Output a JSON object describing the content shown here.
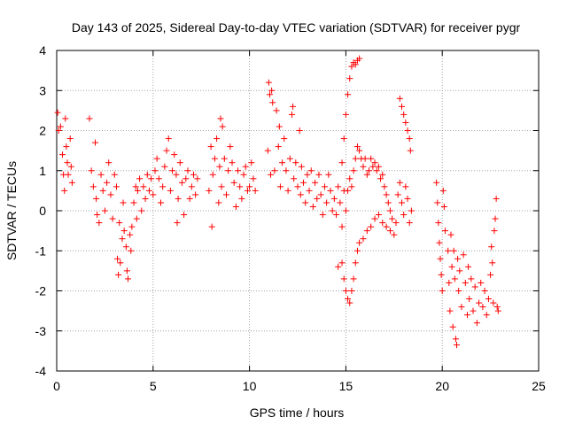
{
  "chart_data": {
    "type": "scatter",
    "title": "Day 143 of 2025, Sidereal Day-to-day VTEC variation (SDTVAR) for receiver pygr",
    "xlabel": "GPS time / hours",
    "ylabel": "SDTVAR / TECUs",
    "xlim": [
      0,
      25
    ],
    "ylim": [
      -4,
      4
    ],
    "x_ticks": [
      0,
      5,
      10,
      15,
      20,
      25
    ],
    "y_ticks": [
      -4,
      -3,
      -2,
      -1,
      0,
      1,
      2,
      3,
      4
    ],
    "grid": true,
    "marker": "plus",
    "series": [
      {
        "name": "SDTVAR",
        "color": "#ff0000",
        "points": [
          [
            0.05,
            2.45
          ],
          [
            0.1,
            2.0
          ],
          [
            0.2,
            2.1
          ],
          [
            0.3,
            1.4
          ],
          [
            0.35,
            0.9
          ],
          [
            0.4,
            0.5
          ],
          [
            0.45,
            2.3
          ],
          [
            0.5,
            1.6
          ],
          [
            0.55,
            1.2
          ],
          [
            0.6,
            0.9
          ],
          [
            0.7,
            1.8
          ],
          [
            0.75,
            1.1
          ],
          [
            0.8,
            0.7
          ],
          [
            1.7,
            2.3
          ],
          [
            1.8,
            1.0
          ],
          [
            1.9,
            0.6
          ],
          [
            2.0,
            1.7
          ],
          [
            2.05,
            0.3
          ],
          [
            2.1,
            -0.1
          ],
          [
            2.2,
            -0.3
          ],
          [
            2.3,
            0.9
          ],
          [
            2.4,
            0.5
          ],
          [
            2.5,
            0.0
          ],
          [
            2.6,
            0.7
          ],
          [
            2.7,
            1.2
          ],
          [
            2.8,
            0.4
          ],
          [
            2.9,
            -0.2
          ],
          [
            3.0,
            0.9
          ],
          [
            3.1,
            0.6
          ],
          [
            3.15,
            -1.2
          ],
          [
            3.2,
            -1.6
          ],
          [
            3.25,
            -0.3
          ],
          [
            3.3,
            -1.3
          ],
          [
            3.4,
            -0.7
          ],
          [
            3.45,
            0.2
          ],
          [
            3.5,
            -0.5
          ],
          [
            3.6,
            -0.9
          ],
          [
            3.65,
            -1.5
          ],
          [
            3.7,
            -1.7
          ],
          [
            3.8,
            -0.6
          ],
          [
            3.85,
            -1.0
          ],
          [
            3.9,
            -0.4
          ],
          [
            4.0,
            0.2
          ],
          [
            4.1,
            0.6
          ],
          [
            4.15,
            -0.2
          ],
          [
            4.2,
            0.5
          ],
          [
            4.3,
            0.8
          ],
          [
            4.4,
            0.0
          ],
          [
            4.5,
            0.6
          ],
          [
            4.6,
            0.3
          ],
          [
            4.7,
            0.9
          ],
          [
            4.8,
            0.5
          ],
          [
            4.9,
            0.8
          ],
          [
            5.0,
            0.4
          ],
          [
            5.1,
            1.0
          ],
          [
            5.2,
            1.3
          ],
          [
            5.3,
            0.8
          ],
          [
            5.4,
            0.2
          ],
          [
            5.5,
            0.6
          ],
          [
            5.6,
            1.1
          ],
          [
            5.7,
            1.5
          ],
          [
            5.8,
            1.8
          ],
          [
            5.9,
            0.5
          ],
          [
            6.0,
            1.0
          ],
          [
            6.1,
            1.4
          ],
          [
            6.2,
            0.9
          ],
          [
            6.25,
            -0.3
          ],
          [
            6.3,
            0.3
          ],
          [
            6.4,
            1.2
          ],
          [
            6.5,
            0.7
          ],
          [
            6.6,
            -0.1
          ],
          [
            6.7,
            0.8
          ],
          [
            6.8,
            1.0
          ],
          [
            6.9,
            0.3
          ],
          [
            7.0,
            0.6
          ],
          [
            7.1,
            0.9
          ],
          [
            7.2,
            0.4
          ],
          [
            7.3,
            0.8
          ],
          [
            7.9,
            0.5
          ],
          [
            8.0,
            1.6
          ],
          [
            8.05,
            -0.4
          ],
          [
            8.1,
            0.9
          ],
          [
            8.2,
            1.3
          ],
          [
            8.3,
            1.8
          ],
          [
            8.4,
            0.2
          ],
          [
            8.45,
            1.1
          ],
          [
            8.5,
            2.3
          ],
          [
            8.55,
            0.6
          ],
          [
            8.6,
            2.1
          ],
          [
            8.7,
            1.3
          ],
          [
            8.8,
            0.4
          ],
          [
            8.9,
            1.0
          ],
          [
            9.0,
            1.6
          ],
          [
            9.1,
            1.2
          ],
          [
            9.2,
            0.7
          ],
          [
            9.3,
            0.1
          ],
          [
            9.4,
            1.0
          ],
          [
            9.5,
            0.6
          ],
          [
            9.6,
            0.3
          ],
          [
            9.7,
            0.9
          ],
          [
            9.8,
            1.1
          ],
          [
            9.9,
            0.5
          ],
          [
            10.0,
            0.6
          ],
          [
            10.1,
            1.2
          ],
          [
            10.2,
            0.8
          ],
          [
            10.3,
            0.5
          ],
          [
            10.95,
            1.5
          ],
          [
            11.0,
            3.2
          ],
          [
            11.05,
            2.9
          ],
          [
            11.1,
            0.9
          ],
          [
            11.15,
            3.0
          ],
          [
            11.2,
            2.7
          ],
          [
            11.3,
            1.0
          ],
          [
            11.4,
            2.5
          ],
          [
            11.5,
            1.6
          ],
          [
            11.55,
            2.1
          ],
          [
            11.6,
            0.6
          ],
          [
            11.7,
            1.2
          ],
          [
            11.8,
            1.8
          ],
          [
            11.9,
            1.0
          ],
          [
            12.0,
            0.5
          ],
          [
            12.1,
            1.3
          ],
          [
            12.2,
            2.4
          ],
          [
            12.25,
            2.6
          ],
          [
            12.3,
            0.8
          ],
          [
            12.4,
            1.2
          ],
          [
            12.5,
            0.6
          ],
          [
            12.6,
            2.0
          ],
          [
            12.65,
            0.4
          ],
          [
            12.7,
            1.1
          ],
          [
            12.8,
            0.7
          ],
          [
            12.9,
            0.2
          ],
          [
            13.0,
            0.9
          ],
          [
            13.1,
            0.5
          ],
          [
            13.2,
            1.0
          ],
          [
            13.3,
            0.1
          ],
          [
            13.4,
            0.7
          ],
          [
            13.5,
            0.3
          ],
          [
            13.6,
            0.9
          ],
          [
            13.7,
            0.4
          ],
          [
            13.8,
            -0.1
          ],
          [
            13.9,
            0.6
          ],
          [
            14.0,
            0.2
          ],
          [
            14.1,
            0.9
          ],
          [
            14.2,
            0.5
          ],
          [
            14.3,
            0.0
          ],
          [
            14.4,
            0.3
          ],
          [
            14.5,
            -0.1
          ],
          [
            14.6,
            0.6
          ],
          [
            14.7,
            0.2
          ],
          [
            14.8,
            1.2
          ],
          [
            14.9,
            0.5
          ],
          [
            14.9,
            1.8
          ],
          [
            15.0,
            2.4
          ],
          [
            15.1,
            2.9
          ],
          [
            15.2,
            3.3
          ],
          [
            15.3,
            3.6
          ],
          [
            15.4,
            3.7
          ],
          [
            15.5,
            3.65
          ],
          [
            15.6,
            3.75
          ],
          [
            15.7,
            3.8
          ],
          [
            14.6,
            -1.4
          ],
          [
            14.8,
            -1.3
          ],
          [
            14.9,
            -1.7
          ],
          [
            15.0,
            -2.0
          ],
          [
            15.1,
            -2.2
          ],
          [
            15.2,
            -2.3
          ],
          [
            15.3,
            -2.0
          ],
          [
            15.4,
            -1.7
          ],
          [
            15.5,
            -1.3
          ],
          [
            15.6,
            -1.0
          ],
          [
            15.7,
            -0.8
          ],
          [
            15.9,
            -0.7
          ],
          [
            16.1,
            -0.5
          ],
          [
            16.3,
            -0.4
          ],
          [
            16.5,
            -0.2
          ],
          [
            16.7,
            -0.1
          ],
          [
            16.9,
            -0.3
          ],
          [
            17.1,
            -0.4
          ],
          [
            17.3,
            -0.5
          ],
          [
            17.5,
            -0.6
          ],
          [
            14.8,
            -0.4
          ],
          [
            15.0,
            0.0
          ],
          [
            15.1,
            0.5
          ],
          [
            15.2,
            0.8
          ],
          [
            15.3,
            0.6
          ],
          [
            15.4,
            1.0
          ],
          [
            15.5,
            1.3
          ],
          [
            15.6,
            1.6
          ],
          [
            15.7,
            1.5
          ],
          [
            15.8,
            1.3
          ],
          [
            15.9,
            1.1
          ],
          [
            16.0,
            1.3
          ],
          [
            16.1,
            0.9
          ],
          [
            16.2,
            1.0
          ],
          [
            16.3,
            1.3
          ],
          [
            16.4,
            1.1
          ],
          [
            16.5,
            1.2
          ],
          [
            16.6,
            1.0
          ],
          [
            16.7,
            1.1
          ],
          [
            16.8,
            0.8
          ],
          [
            16.9,
            0.9
          ],
          [
            17.0,
            0.6
          ],
          [
            17.1,
            0.4
          ],
          [
            17.2,
            0.2
          ],
          [
            17.3,
            0.0
          ],
          [
            17.4,
            -0.2
          ],
          [
            17.8,
            2.8
          ],
          [
            17.9,
            2.6
          ],
          [
            18.0,
            2.4
          ],
          [
            18.1,
            2.2
          ],
          [
            18.2,
            2.0
          ],
          [
            18.3,
            1.8
          ],
          [
            18.35,
            1.5
          ],
          [
            17.6,
            -0.3
          ],
          [
            17.7,
            0.4
          ],
          [
            17.8,
            0.7
          ],
          [
            17.9,
            0.2
          ],
          [
            18.0,
            -0.1
          ],
          [
            18.1,
            0.6
          ],
          [
            18.2,
            0.3
          ],
          [
            18.3,
            -0.3
          ],
          [
            18.4,
            0.0
          ],
          [
            19.7,
            0.7
          ],
          [
            19.75,
            0.2
          ],
          [
            19.8,
            -0.3
          ],
          [
            19.85,
            -0.8
          ],
          [
            19.9,
            -1.2
          ],
          [
            19.95,
            -1.6
          ],
          [
            20.0,
            -2.0
          ],
          [
            20.05,
            0.5
          ],
          [
            20.1,
            0.1
          ],
          [
            20.15,
            -0.5
          ],
          [
            20.3,
            -1.0
          ],
          [
            20.35,
            -1.8
          ],
          [
            20.4,
            -2.5
          ],
          [
            20.45,
            -0.6
          ],
          [
            20.5,
            -1.4
          ],
          [
            20.55,
            -2.9
          ],
          [
            20.6,
            -1.0
          ],
          [
            20.65,
            -1.7
          ],
          [
            20.7,
            -3.2
          ],
          [
            20.75,
            -3.35
          ],
          [
            20.8,
            -1.2
          ],
          [
            20.85,
            -2.0
          ],
          [
            20.9,
            -1.5
          ],
          [
            21.0,
            -2.4
          ],
          [
            21.1,
            -1.1
          ],
          [
            21.2,
            -1.8
          ],
          [
            21.3,
            -2.6
          ],
          [
            21.35,
            -1.4
          ],
          [
            21.4,
            -2.2
          ],
          [
            21.5,
            -1.7
          ],
          [
            21.6,
            -2.5
          ],
          [
            21.7,
            -1.9
          ],
          [
            21.8,
            -2.8
          ],
          [
            21.9,
            -2.3
          ],
          [
            22.0,
            -1.8
          ],
          [
            22.1,
            -2.4
          ],
          [
            22.2,
            -2.0
          ],
          [
            22.3,
            -2.6
          ],
          [
            22.4,
            -2.2
          ],
          [
            22.5,
            -1.6
          ],
          [
            22.55,
            -0.9
          ],
          [
            22.6,
            -1.3
          ],
          [
            22.65,
            -2.3
          ],
          [
            22.7,
            -0.5
          ],
          [
            22.75,
            -0.2
          ],
          [
            22.8,
            0.3
          ],
          [
            22.85,
            -2.4
          ],
          [
            22.9,
            -2.5
          ]
        ]
      }
    ]
  }
}
